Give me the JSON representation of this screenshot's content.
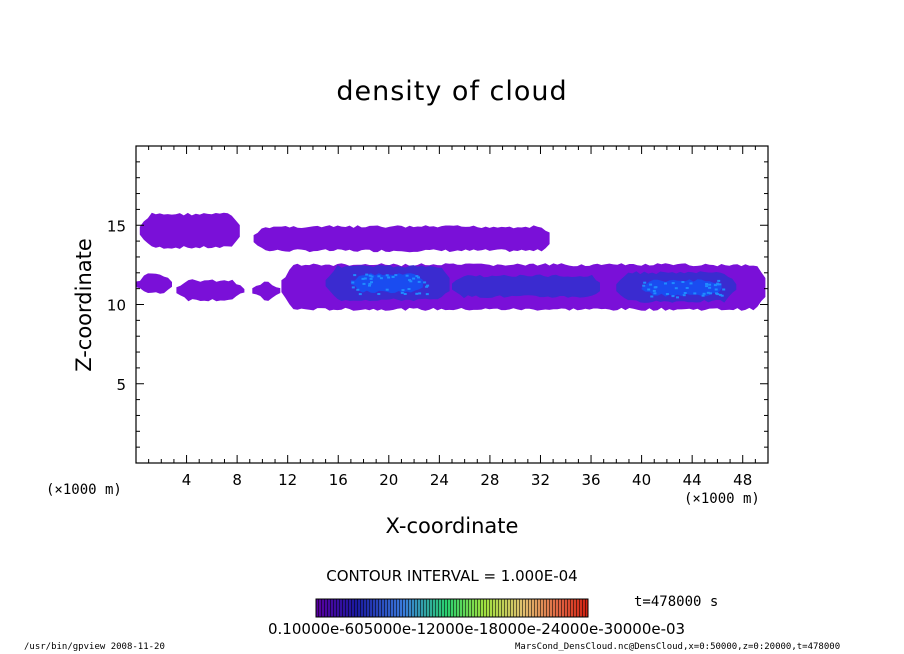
{
  "chart_data": {
    "type": "heatmap",
    "title": "density of cloud",
    "xlabel": "X-coordinate",
    "ylabel": "Z-coordinate",
    "x_unit": "(×1000 m)",
    "xlim": [
      0,
      50
    ],
    "ylim": [
      0,
      20
    ],
    "x_ticks": [
      4,
      8,
      12,
      16,
      20,
      24,
      28,
      32,
      36,
      40,
      44,
      48
    ],
    "y_ticks": [
      5,
      10,
      15
    ],
    "contour_interval": "CONTOUR INTERVAL = 1.000E-04",
    "time_label": "t=478000 s",
    "colorbar_labels": "0.10000e-605000e-12000e-18000e-24000e-30000e-03",
    "colors": {
      "low": "#7a10d8",
      "mid": "#3a2bd0",
      "high": "#1a4cf0",
      "peak": "#1f8cff"
    },
    "regions": [
      {
        "x": [
          0.3,
          8.4
        ],
        "z": [
          13.5,
          15.8
        ],
        "level": "low"
      },
      {
        "x": [
          9.3,
          33.0
        ],
        "z": [
          13.3,
          15.0
        ],
        "level": "low"
      },
      {
        "x": [
          0.0,
          3.0
        ],
        "z": [
          10.6,
          12.0
        ],
        "level": "low"
      },
      {
        "x": [
          3.2,
          8.6
        ],
        "z": [
          10.2,
          11.6
        ],
        "level": "low"
      },
      {
        "x": [
          9.2,
          11.5
        ],
        "z": [
          10.2,
          11.5
        ],
        "level": "low"
      },
      {
        "x": [
          11.5,
          50.0
        ],
        "z": [
          9.6,
          12.6
        ],
        "level": "low"
      },
      {
        "x": [
          15.0,
          25.0
        ],
        "z": [
          10.2,
          12.5
        ],
        "level": "mid"
      },
      {
        "x": [
          17.0,
          23.0
        ],
        "z": [
          10.7,
          12.0
        ],
        "level": "high"
      },
      {
        "x": [
          25.0,
          37.0
        ],
        "z": [
          10.4,
          11.9
        ],
        "level": "mid"
      },
      {
        "x": [
          38.0,
          47.5
        ],
        "z": [
          10.1,
          12.1
        ],
        "level": "mid"
      },
      {
        "x": [
          40.0,
          46.5
        ],
        "z": [
          10.5,
          11.6
        ],
        "level": "high"
      }
    ]
  },
  "footer": {
    "left": "/usr/bin/gpview   2008-11-20",
    "right": "MarsCond_DensCloud.nc@DensCloud,x=0:50000,z=0:20000,t=478000"
  }
}
